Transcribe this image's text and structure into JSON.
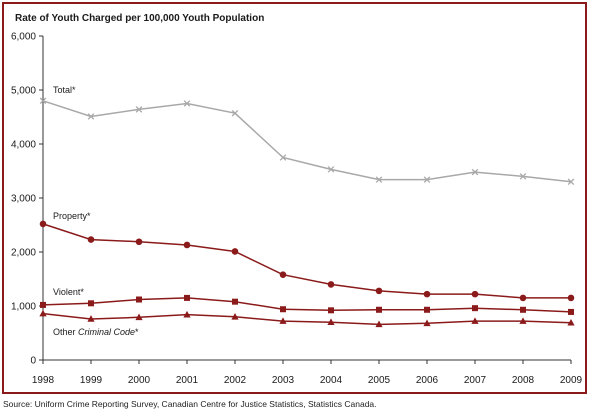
{
  "chart_data": {
    "type": "line",
    "title": "Rate of Youth Charged per 100,000 Youth Population",
    "x": [
      "1998",
      "1999",
      "2000",
      "2001",
      "2002",
      "2003",
      "2004",
      "2005",
      "2006",
      "2007",
      "2008",
      "2009"
    ],
    "ylim": [
      0,
      6000
    ],
    "yticks": [
      "0",
      "1,000",
      "2,000",
      "3,000",
      "4,000",
      "5,000",
      "6,000"
    ],
    "grid": false,
    "series": [
      {
        "name": "Total*",
        "marker": "x",
        "color": "#a8a8a8",
        "values": [
          4800,
          4510,
          4640,
          4750,
          4570,
          3750,
          3530,
          3340,
          3340,
          3480,
          3400,
          3300
        ]
      },
      {
        "name": "Property*",
        "marker": "circle",
        "color": "#8b1a1a",
        "values": [
          2520,
          2230,
          2190,
          2130,
          2010,
          1580,
          1400,
          1280,
          1220,
          1220,
          1150,
          1150
        ]
      },
      {
        "name": "Violent*",
        "marker": "square",
        "color": "#8b1a1a",
        "values": [
          1020,
          1050,
          1120,
          1150,
          1080,
          940,
          920,
          930,
          930,
          960,
          930,
          890
        ]
      },
      {
        "name": "Other Criminal Code*",
        "marker": "triangle",
        "color": "#8b1a1a",
        "values": [
          860,
          760,
          790,
          840,
          800,
          720,
          700,
          660,
          680,
          720,
          720,
          690
        ]
      }
    ],
    "series_labels": [
      {
        "prefix": "Total*",
        "italic": "",
        "suffix": ""
      },
      {
        "prefix": "Property*",
        "italic": "",
        "suffix": ""
      },
      {
        "prefix": "Violent*",
        "italic": "",
        "suffix": ""
      },
      {
        "prefix": "Other ",
        "italic": "Criminal Code",
        "suffix": "*"
      }
    ]
  },
  "source": "Source:  Uniform Crime Reporting Survey, Canadian Centre for Justice Statistics, Statistics Canada."
}
